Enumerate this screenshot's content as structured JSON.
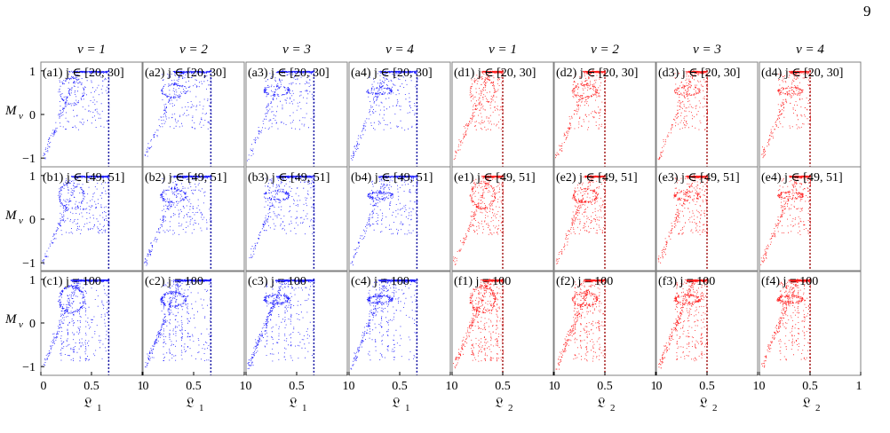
{
  "page": {
    "number": "9"
  },
  "figure": {
    "y_axis_label": "M",
    "y_axis_sub": "ν",
    "y_ticks": [
      "1",
      "0",
      "−1"
    ],
    "x_ticks": [
      "0",
      "0.5",
      "1"
    ],
    "x_label_letter": "𝔏",
    "col_headers": [
      "ν = 1",
      "ν = 2",
      "ν = 3",
      "ν = 4",
      "ν = 1",
      "ν = 2",
      "ν = 3",
      "ν = 4"
    ],
    "x_labels": [
      "1",
      "1",
      "1",
      "1",
      "2",
      "2",
      "2",
      "2"
    ],
    "panel_labels": [
      [
        "(a1)",
        "(a2)",
        "(a3)",
        "(a4)",
        "(d1)",
        "(d2)",
        "(d3)",
        "(d4)"
      ],
      [
        "(b1)",
        "(b2)",
        "(b3)",
        "(b4)",
        "(e1)",
        "(e2)",
        "(e3)",
        "(e4)"
      ],
      [
        "(c1)",
        "(c2)",
        "(c3)",
        "(c4)",
        "(f1)",
        "(f2)",
        "(f3)",
        "(f4)"
      ]
    ],
    "row_conditions": [
      "j ∈ [20, 30]",
      "j ∈ [49, 51]",
      "j = 100"
    ],
    "colors": {
      "blue": "#1f1fff",
      "red": "#ff2020",
      "blue_dash": "#1010a0",
      "red_dash": "#a01010",
      "frame": "#808080"
    }
  },
  "chart_data": {
    "type": "scatter",
    "grid": "3 rows × 8 columns of panels",
    "xlim": [
      0,
      1
    ],
    "ylim": [
      -1.2,
      1.2
    ],
    "x_axes": [
      "𝔏1",
      "𝔏1",
      "𝔏1",
      "𝔏1",
      "𝔏2",
      "𝔏2",
      "𝔏2",
      "𝔏2"
    ],
    "y_axis": "Mν",
    "dashed_vertical_line_x": {
      "blue_panels": 0.67,
      "red_panels": 0.5
    },
    "point_colors": {
      "columns_1_to_4": "blue",
      "columns_5_to_8": "red"
    }
  }
}
